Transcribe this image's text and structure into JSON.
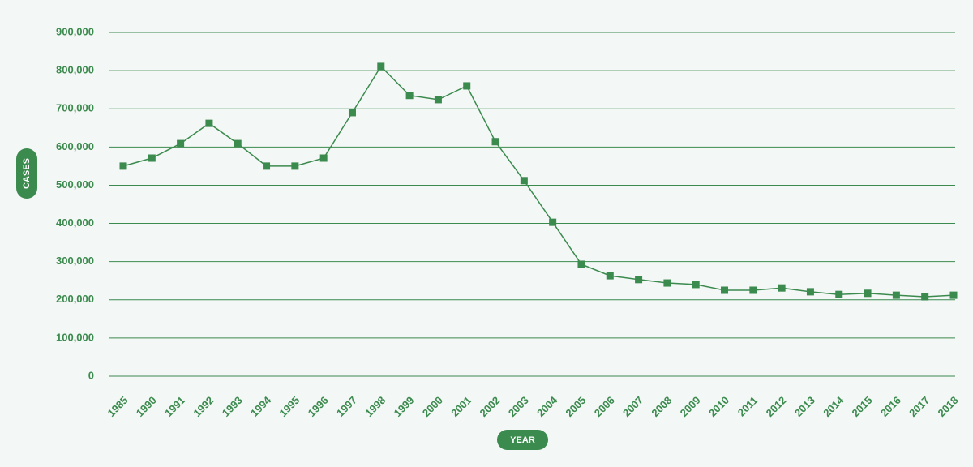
{
  "chart_data": {
    "type": "line",
    "x_label": "YEAR",
    "y_label": "CASES",
    "categories": [
      "1985",
      "1990",
      "1991",
      "1992",
      "1993",
      "1994",
      "1995",
      "1996",
      "1997",
      "1998",
      "1999",
      "2000",
      "2001",
      "2002",
      "2003",
      "2004",
      "2005",
      "2006",
      "2007",
      "2008",
      "2009",
      "2010",
      "2011",
      "2012",
      "2013",
      "2014",
      "2015",
      "2016",
      "2017",
      "2018"
    ],
    "series": [
      {
        "name": "Cases",
        "color": "#3b8a4e",
        "values": [
          550000,
          571000,
          609000,
          662000,
          609000,
          550000,
          550000,
          571000,
          690000,
          811000,
          735000,
          724000,
          760000,
          614000,
          512000,
          403000,
          293000,
          263000,
          253000,
          244000,
          240000,
          225000,
          225000,
          231000,
          221000,
          214000,
          217000,
          212000,
          208000,
          212000
        ]
      }
    ],
    "ylim": [
      0,
      900000
    ],
    "yticks": [
      {
        "value": 0,
        "label": "0"
      },
      {
        "value": 100000,
        "label": "100,000"
      },
      {
        "value": 200000,
        "label": "200,000"
      },
      {
        "value": 300000,
        "label": "300,000"
      },
      {
        "value": 400000,
        "label": "400,000"
      },
      {
        "value": 500000,
        "label": "500,000"
      },
      {
        "value": 600000,
        "label": "600,000"
      },
      {
        "value": 700000,
        "label": "700,000"
      },
      {
        "value": 800000,
        "label": "800,000"
      },
      {
        "value": 900000,
        "label": "900,000"
      }
    ],
    "grid": true
  }
}
